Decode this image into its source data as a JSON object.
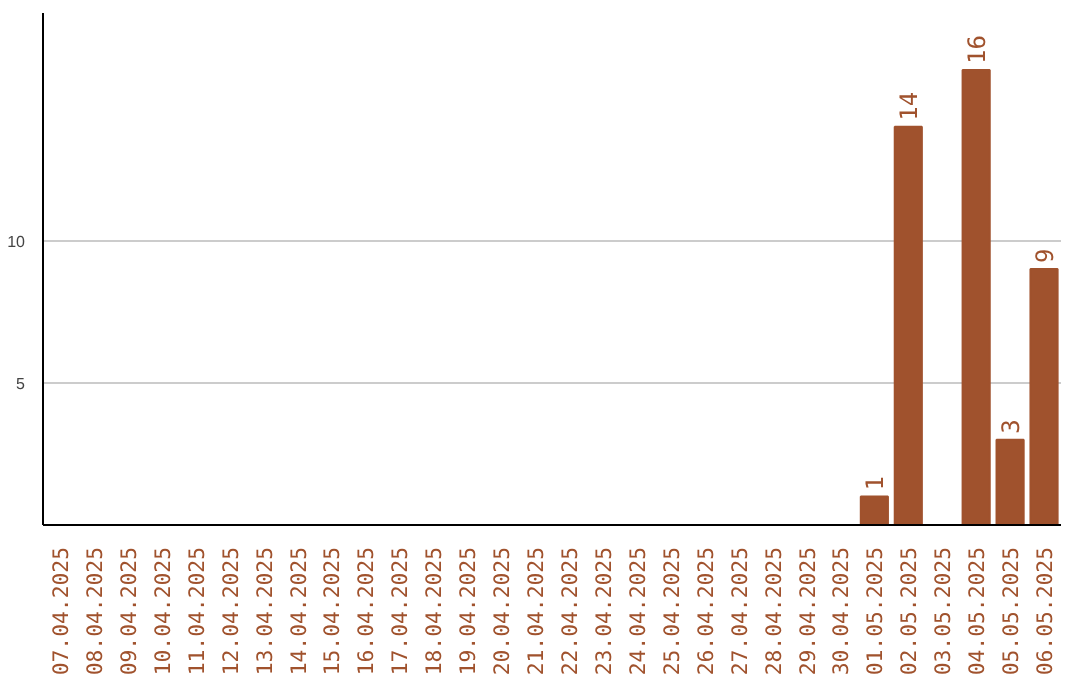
{
  "chart_data": {
    "type": "bar",
    "categories": [
      "07.04.2025",
      "08.04.2025",
      "09.04.2025",
      "10.04.2025",
      "11.04.2025",
      "12.04.2025",
      "13.04.2025",
      "14.04.2025",
      "15.04.2025",
      "16.04.2025",
      "17.04.2025",
      "18.04.2025",
      "19.04.2025",
      "20.04.2025",
      "21.04.2025",
      "22.04.2025",
      "23.04.2025",
      "24.04.2025",
      "25.04.2025",
      "26.04.2025",
      "27.04.2025",
      "28.04.2025",
      "29.04.2025",
      "30.04.2025",
      "01.05.2025",
      "02.05.2025",
      "03.05.2025",
      "04.05.2025",
      "05.05.2025",
      "06.05.2025"
    ],
    "values": [
      0,
      0,
      0,
      0,
      0,
      0,
      0,
      0,
      0,
      0,
      0,
      0,
      0,
      0,
      0,
      0,
      0,
      0,
      0,
      0,
      0,
      0,
      0,
      0,
      1,
      14,
      0,
      16,
      3,
      9
    ],
    "value_labels": [
      null,
      null,
      null,
      null,
      null,
      null,
      null,
      null,
      null,
      null,
      null,
      null,
      null,
      null,
      null,
      null,
      null,
      null,
      null,
      null,
      null,
      null,
      null,
      null,
      "1",
      "14",
      null,
      "16",
      "3",
      "9"
    ],
    "color": "#a0522d",
    "ylim": [
      0,
      18
    ],
    "yticks": [
      5,
      10
    ],
    "grid": "y"
  }
}
